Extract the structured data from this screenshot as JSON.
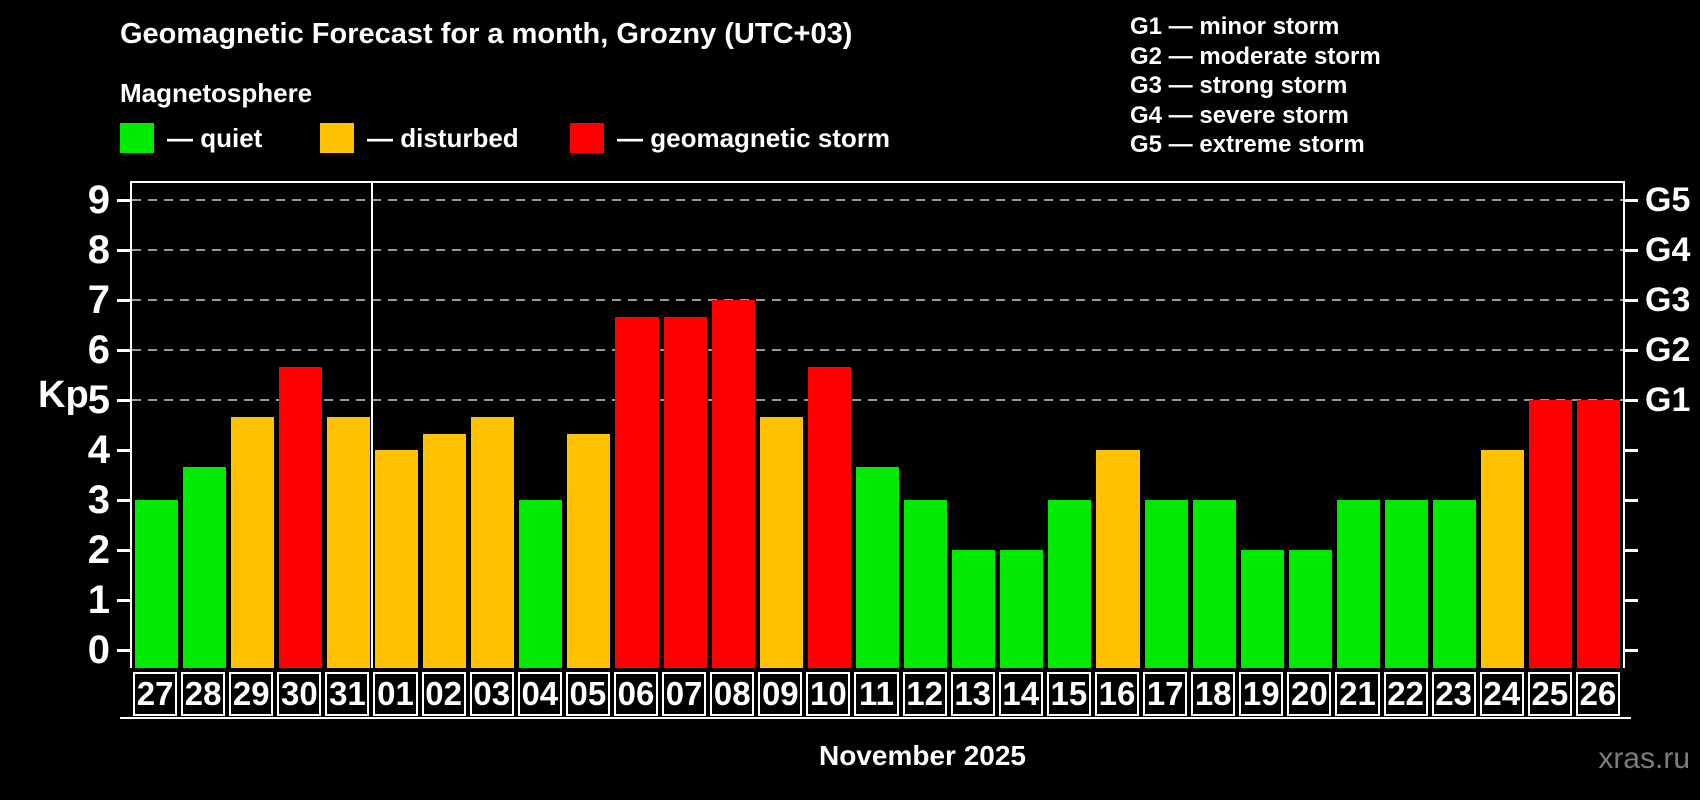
{
  "header": {
    "title": "Geomagnetic Forecast for a month, Grozny (UTC+03)",
    "subtitle": "Magnetosphere"
  },
  "legend": {
    "items": [
      {
        "key": "quiet",
        "label": "— quiet",
        "color": "#00ea00"
      },
      {
        "key": "disturbed",
        "label": "— disturbed",
        "color": "#ffc100"
      },
      {
        "key": "storm",
        "label": "— geomagnetic storm",
        "color": "#ff0000"
      }
    ]
  },
  "g_legend": {
    "items": [
      {
        "label": "G1 — minor storm"
      },
      {
        "label": "G2 — moderate storm"
      },
      {
        "label": "G3 — strong storm"
      },
      {
        "label": "G4 — severe storm"
      },
      {
        "label": "G5 — extreme storm"
      }
    ]
  },
  "footer": {
    "xlabel": "November 2025",
    "watermark": "xras.ru"
  },
  "chart_data": {
    "type": "bar",
    "title": "Geomagnetic Forecast for a month, Grozny (UTC+03)",
    "subtitle": "Magnetosphere",
    "xlabel": "November 2025",
    "ylabel": "Kp",
    "categories": [
      "27",
      "28",
      "29",
      "30",
      "31",
      "01",
      "02",
      "03",
      "04",
      "05",
      "06",
      "07",
      "08",
      "09",
      "10",
      "11",
      "12",
      "13",
      "14",
      "15",
      "16",
      "17",
      "18",
      "19",
      "20",
      "21",
      "22",
      "23",
      "24",
      "25",
      "26"
    ],
    "values": [
      3.0,
      3.67,
      4.67,
      5.67,
      4.67,
      4.0,
      4.33,
      4.67,
      3.0,
      4.33,
      6.67,
      6.67,
      7.0,
      4.67,
      5.67,
      3.67,
      3.0,
      2.0,
      2.0,
      3.0,
      4.0,
      3.0,
      3.0,
      2.0,
      2.0,
      3.0,
      3.0,
      3.0,
      4.0,
      5.0,
      5.0
    ],
    "statuses": [
      "quiet",
      "quiet",
      "disturbed",
      "storm",
      "disturbed",
      "disturbed",
      "disturbed",
      "disturbed",
      "quiet",
      "disturbed",
      "storm",
      "storm",
      "storm",
      "disturbed",
      "storm",
      "quiet",
      "quiet",
      "quiet",
      "quiet",
      "quiet",
      "disturbed",
      "quiet",
      "quiet",
      "quiet",
      "quiet",
      "quiet",
      "quiet",
      "quiet",
      "disturbed",
      "storm",
      "storm"
    ],
    "colors": {
      "quiet": "#00ea00",
      "disturbed": "#ffc100",
      "storm": "#ff0000"
    },
    "ylim": [
      -0.36,
      9.36
    ],
    "yticks": [
      0,
      1,
      2,
      3,
      4,
      5,
      6,
      7,
      8,
      9
    ],
    "gridlines_kp": [
      5,
      6,
      7,
      8,
      9
    ],
    "right_axis_labels": [
      {
        "kp": 5,
        "label": "G1"
      },
      {
        "kp": 6,
        "label": "G2"
      },
      {
        "kp": 7,
        "label": "G3"
      },
      {
        "kp": 8,
        "label": "G4"
      },
      {
        "kp": 9,
        "label": "G5"
      }
    ],
    "month_separator_after_index": 4,
    "grid": "dashed",
    "legend_position": "top"
  }
}
